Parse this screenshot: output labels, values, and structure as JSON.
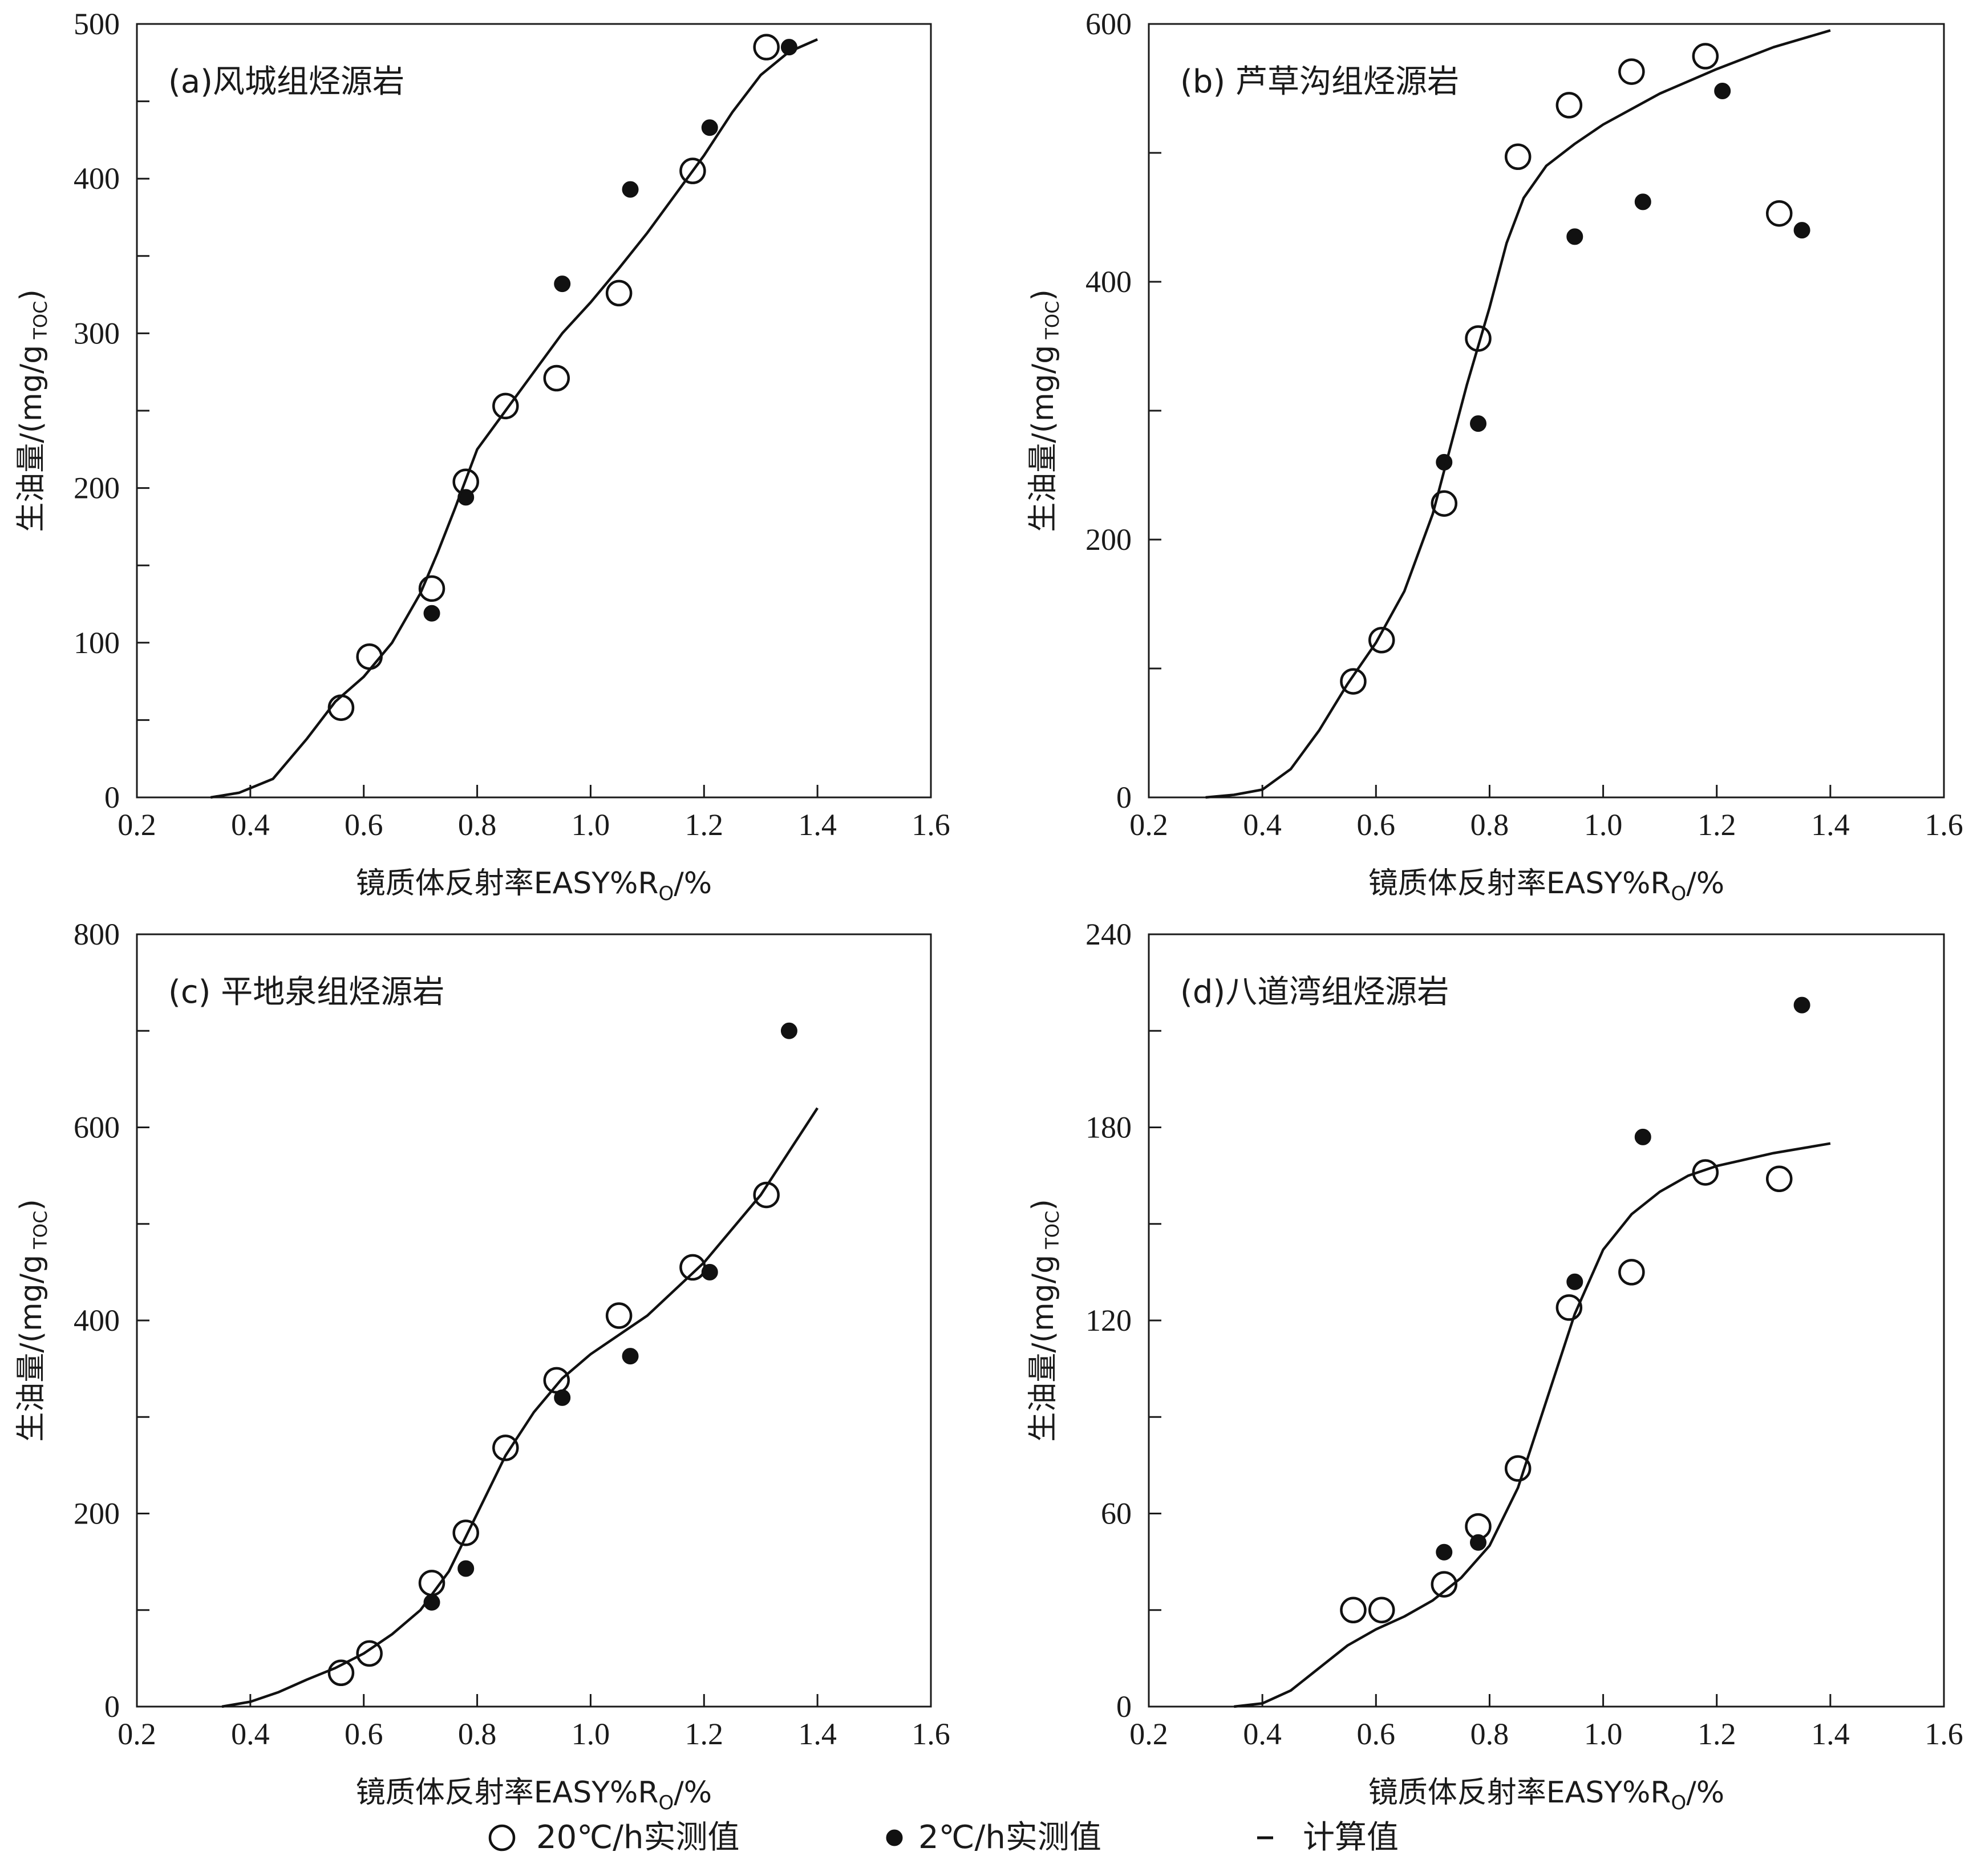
{
  "chart_data": [
    {
      "type": "scatter",
      "title": "(a)风城组烃源岩",
      "xlabel": "镜质体反射率EASY%R",
      "xlabel_sub": "O",
      "xlabel_tail": "/%",
      "ylabel": "生油量/(mg/g",
      "ylabel_sub": "TOC",
      "ylabel_tail": ")",
      "xlim": [
        0.2,
        1.6
      ],
      "ylim": [
        0,
        500
      ],
      "x_ticks": [
        0.2,
        0.4,
        0.6,
        0.8,
        1.0,
        1.2,
        1.4,
        1.6
      ],
      "x_tick_labels": [
        "0.2",
        "0.4",
        "0.6",
        "0.8",
        "1.0",
        "1.2",
        "1.4",
        "1.6"
      ],
      "y_ticks": [
        0,
        50,
        100,
        150,
        200,
        250,
        300,
        350,
        400,
        450,
        500
      ],
      "y_tick_labels": [
        "0",
        "",
        "100",
        "",
        "200",
        "",
        "300",
        "",
        "400",
        "",
        "500"
      ],
      "series": [
        {
          "name": "20℃/h实测值",
          "marker": "open",
          "x": [
            0.56,
            0.61,
            0.72,
            0.78,
            0.85,
            0.94,
            1.05,
            1.18,
            1.31
          ],
          "y": [
            58,
            91,
            135,
            204,
            253,
            271,
            326,
            405,
            485
          ]
        },
        {
          "name": "2℃/h实测值",
          "marker": "filled",
          "x": [
            0.72,
            0.78,
            0.95,
            1.07,
            1.21,
            1.35
          ],
          "y": [
            119,
            194,
            332,
            393,
            433,
            485
          ]
        },
        {
          "name": "计算值",
          "marker": "line",
          "x": [
            0.33,
            0.38,
            0.44,
            0.5,
            0.55,
            0.6,
            0.65,
            0.7,
            0.73,
            0.76,
            0.8,
            0.85,
            0.9,
            0.95,
            1.0,
            1.05,
            1.1,
            1.15,
            1.2,
            1.25,
            1.3,
            1.35,
            1.4
          ],
          "y": [
            0,
            3,
            12,
            38,
            62,
            78,
            100,
            132,
            158,
            186,
            225,
            250,
            275,
            300,
            320,
            342,
            365,
            390,
            415,
            443,
            467,
            482,
            490
          ]
        }
      ]
    },
    {
      "type": "scatter",
      "title": "(b) 芦草沟组烃源岩",
      "xlabel": "镜质体反射率EASY%R",
      "xlabel_sub": "O",
      "xlabel_tail": "/%",
      "ylabel": "生油量/(mg/g",
      "ylabel_sub": "TOC",
      "ylabel_tail": ")",
      "xlim": [
        0.2,
        1.6
      ],
      "ylim": [
        0,
        600
      ],
      "x_ticks": [
        0.2,
        0.4,
        0.6,
        0.8,
        1.0,
        1.2,
        1.4,
        1.6
      ],
      "x_tick_labels": [
        "0.2",
        "0.4",
        "0.6",
        "0.8",
        "1.0",
        "1.2",
        "1.4",
        "1.6"
      ],
      "y_ticks": [
        0,
        100,
        200,
        300,
        400,
        500,
        600
      ],
      "y_tick_labels": [
        "0",
        "",
        "200",
        "",
        "400",
        "",
        "600"
      ],
      "series": [
        {
          "name": "20℃/h实测值",
          "marker": "open",
          "x": [
            0.56,
            0.61,
            0.72,
            0.78,
            0.85,
            0.94,
            1.05,
            1.18,
            1.31
          ],
          "y": [
            90,
            122,
            228,
            356,
            497,
            537,
            563,
            575,
            453
          ]
        },
        {
          "name": "2℃/h实测值",
          "marker": "filled",
          "x": [
            0.72,
            0.78,
            0.95,
            1.07,
            1.21,
            1.35
          ],
          "y": [
            260,
            290,
            435,
            462,
            548,
            440
          ]
        },
        {
          "name": "计算值",
          "marker": "line",
          "x": [
            0.3,
            0.35,
            0.4,
            0.45,
            0.5,
            0.55,
            0.6,
            0.65,
            0.7,
            0.73,
            0.76,
            0.8,
            0.83,
            0.86,
            0.9,
            0.95,
            1.0,
            1.1,
            1.2,
            1.3,
            1.4
          ],
          "y": [
            0,
            2,
            6,
            22,
            52,
            88,
            120,
            160,
            220,
            270,
            320,
            380,
            430,
            465,
            490,
            507,
            522,
            546,
            565,
            582,
            595
          ]
        }
      ]
    },
    {
      "type": "scatter",
      "title": "(c) 平地泉组烃源岩",
      "xlabel": "镜质体反射率EASY%R",
      "xlabel_sub": "O",
      "xlabel_tail": "/%",
      "ylabel": "生油量/(mg/g",
      "ylabel_sub": "TOC",
      "ylabel_tail": ")",
      "xlim": [
        0.2,
        1.6
      ],
      "ylim": [
        0,
        800
      ],
      "x_ticks": [
        0.2,
        0.4,
        0.6,
        0.8,
        1.0,
        1.2,
        1.4,
        1.6
      ],
      "x_tick_labels": [
        "0.2",
        "0.4",
        "0.6",
        "0.8",
        "1.0",
        "1.2",
        "1.4",
        "1.6"
      ],
      "y_ticks": [
        0,
        100,
        200,
        300,
        400,
        500,
        600,
        700,
        800
      ],
      "y_tick_labels": [
        "0",
        "",
        "200",
        "",
        "400",
        "",
        "600",
        "",
        "800"
      ],
      "series": [
        {
          "name": "20℃/h实测值",
          "marker": "open",
          "x": [
            0.56,
            0.61,
            0.72,
            0.78,
            0.85,
            0.94,
            1.05,
            1.18,
            1.31
          ],
          "y": [
            35,
            55,
            128,
            180,
            268,
            338,
            405,
            455,
            530
          ]
        },
        {
          "name": "2℃/h实测值",
          "marker": "filled",
          "x": [
            0.72,
            0.78,
            0.95,
            1.07,
            1.21,
            1.35
          ],
          "y": [
            108,
            143,
            320,
            363,
            450,
            700
          ]
        },
        {
          "name": "计算值",
          "marker": "line",
          "x": [
            0.35,
            0.4,
            0.45,
            0.5,
            0.55,
            0.6,
            0.65,
            0.7,
            0.75,
            0.8,
            0.85,
            0.9,
            0.95,
            1.0,
            1.05,
            1.1,
            1.2,
            1.3,
            1.4
          ],
          "y": [
            0,
            5,
            15,
            28,
            40,
            55,
            75,
            100,
            140,
            200,
            260,
            305,
            340,
            365,
            385,
            405,
            460,
            530,
            620
          ]
        }
      ]
    },
    {
      "type": "scatter",
      "title": "(d)八道湾组烃源岩",
      "xlabel": "镜质体反射率EASY%R",
      "xlabel_sub": "O",
      "xlabel_tail": "/%",
      "ylabel": "生油量/(mg/g",
      "ylabel_sub": "TOC",
      "ylabel_tail": ")",
      "xlim": [
        0.2,
        1.6
      ],
      "ylim": [
        0,
        240
      ],
      "x_ticks": [
        0.2,
        0.4,
        0.6,
        0.8,
        1.0,
        1.2,
        1.4,
        1.6
      ],
      "x_tick_labels": [
        "0.2",
        "0.4",
        "0.6",
        "0.8",
        "1.0",
        "1.2",
        "1.4",
        "1.6"
      ],
      "y_ticks": [
        0,
        30,
        60,
        90,
        120,
        150,
        180,
        210,
        240
      ],
      "y_tick_labels": [
        "0",
        "",
        "60",
        "",
        "120",
        "",
        "180",
        "",
        "240"
      ],
      "series": [
        {
          "name": "20℃/h实测值",
          "marker": "open",
          "x": [
            0.56,
            0.61,
            0.72,
            0.78,
            0.85,
            0.94,
            1.05,
            1.18,
            1.31
          ],
          "y": [
            30,
            30,
            38,
            56,
            74,
            124,
            135,
            166,
            164
          ]
        },
        {
          "name": "2℃/h实测值",
          "marker": "filled",
          "x": [
            0.72,
            0.78,
            0.95,
            1.07,
            1.35
          ],
          "y": [
            48,
            51,
            132,
            177,
            218
          ]
        },
        {
          "name": "计算值",
          "marker": "line",
          "x": [
            0.35,
            0.4,
            0.45,
            0.5,
            0.55,
            0.6,
            0.65,
            0.7,
            0.75,
            0.8,
            0.85,
            0.9,
            0.95,
            1.0,
            1.05,
            1.1,
            1.15,
            1.2,
            1.3,
            1.4
          ],
          "y": [
            0,
            1,
            5,
            12,
            19,
            24,
            28,
            33,
            40,
            50,
            68,
            95,
            122,
            142,
            153,
            160,
            165,
            168,
            172,
            175
          ]
        }
      ]
    }
  ],
  "legend": [
    {
      "marker": "open",
      "label": "20℃/h实测值"
    },
    {
      "marker": "filled",
      "label": "2℃/h实测值"
    },
    {
      "marker": "line",
      "label": "计算值"
    }
  ]
}
